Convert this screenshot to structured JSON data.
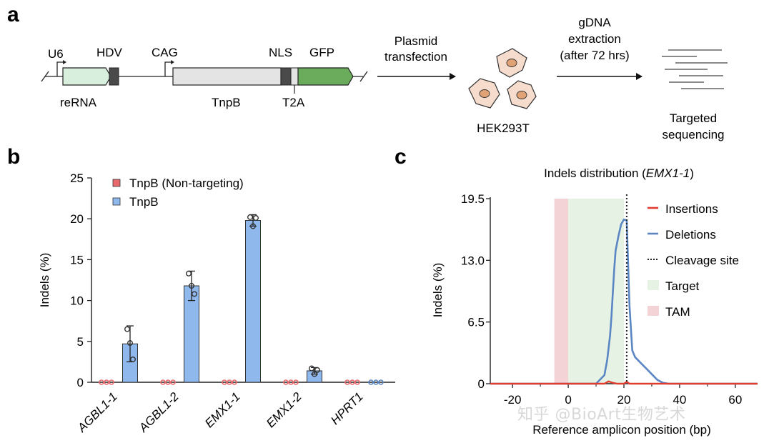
{
  "panel_labels": {
    "a": "a",
    "b": "b",
    "c": "c"
  },
  "construct": {
    "labels": {
      "u6": "U6",
      "hdv": "HDV",
      "cag": "CAG",
      "nls": "NLS",
      "gfp": "GFP",
      "rerna": "reRNA",
      "tnpb": "TnpB",
      "t2a": "T2A"
    },
    "colors": {
      "rerna": "#d7efdc",
      "tnpb": "#e4e4e4",
      "gfp": "#6aac5c",
      "dark": "#4a4a4a"
    }
  },
  "workflow": {
    "step1": [
      "Plasmid",
      "transfection"
    ],
    "cells": "HEK293T",
    "step2": [
      "gDNA",
      "extraction",
      "(after 72 hrs)"
    ],
    "step3": [
      "Targeted",
      "sequencing"
    ]
  },
  "watermark": "知乎 @BioArt生物艺术",
  "chart_data": [
    {
      "type": "bar",
      "title": "",
      "ylabel": "Indels (%)",
      "ylim": [
        0,
        25
      ],
      "yticks": [
        0,
        5,
        10,
        15,
        20,
        25
      ],
      "categories": [
        "AGBL1-1",
        "AGBL1-2",
        "EMX1-1",
        "EMX1-2",
        "HPRT1"
      ],
      "legend": [
        "TnpB (Non-targeting)",
        "TnpB"
      ],
      "series": [
        {
          "name": "TnpB (Non-targeting)",
          "color": "#e8696b",
          "values": [
            0,
            0,
            0,
            0,
            0
          ],
          "points": [
            [
              0,
              0,
              0
            ],
            [
              0,
              0,
              0
            ],
            [
              0,
              0,
              0
            ],
            [
              0,
              0,
              0
            ],
            [
              0,
              0,
              0
            ]
          ]
        },
        {
          "name": "TnpB",
          "color": "#8fb8ec",
          "values": [
            4.7,
            11.8,
            19.8,
            1.4,
            0
          ],
          "errors": [
            2.2,
            1.8,
            0.7,
            0.4,
            0
          ],
          "points": [
            [
              6.5,
              4.8,
              2.8
            ],
            [
              13.3,
              11.8,
              10.8
            ],
            [
              20.2,
              19.1,
              20.1
            ],
            [
              1.7,
              1.0,
              1.5
            ],
            [
              0,
              0,
              0
            ]
          ]
        }
      ]
    },
    {
      "type": "line",
      "title": "Indels distribution (",
      "title_gene": "EMX1-1",
      "title_end": ")",
      "xlabel": "Reference amplicon position (bp)",
      "ylabel": "Indels (%)",
      "xlim": [
        -28,
        68
      ],
      "ylim": [
        0,
        19.5
      ],
      "xticks": [
        -20,
        0,
        20,
        40,
        60
      ],
      "yticks": [
        0,
        6.5,
        13.0,
        19.5
      ],
      "ytick_labels": [
        "0",
        "6.5",
        "13.0",
        "19.5"
      ],
      "cleavage_site": 21,
      "target_region": [
        0,
        20
      ],
      "tam_region": [
        -5,
        0
      ],
      "legend": [
        "Insertions",
        "Deletions",
        "Cleavage site",
        "Target",
        "TAM"
      ],
      "colors": {
        "insertions": "#e03c2f",
        "deletions": "#5b86c4",
        "cleavage": "#222222",
        "target": "#e6f3e4",
        "tam": "#f4d3d6"
      },
      "series": [
        {
          "name": "Deletions",
          "x": [
            -28,
            10,
            12,
            13,
            14,
            15,
            15.5,
            16,
            16.5,
            17,
            18,
            19,
            20,
            21,
            22,
            23,
            24,
            26,
            28,
            30,
            32,
            34,
            36,
            40,
            68
          ],
          "y": [
            0,
            0,
            0.6,
            0.9,
            2.5,
            5.0,
            7.0,
            9.5,
            12.0,
            14.0,
            15.5,
            16.8,
            17.3,
            17.2,
            8.2,
            3.5,
            2.8,
            2.2,
            1.6,
            1.0,
            0.4,
            0.1,
            0,
            0,
            0
          ]
        },
        {
          "name": "Insertions",
          "x": [
            -28,
            13,
            14.5,
            16,
            17.5,
            20,
            21,
            22,
            68
          ],
          "y": [
            0,
            0,
            0.25,
            0.1,
            0,
            0,
            0.2,
            0,
            0
          ]
        }
      ]
    }
  ]
}
